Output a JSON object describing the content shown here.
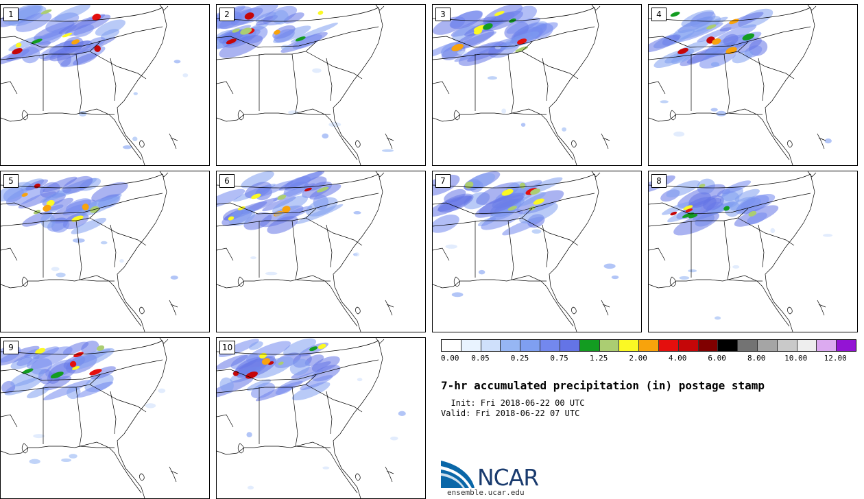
{
  "panels": [
    {
      "label": "1"
    },
    {
      "label": "2"
    },
    {
      "label": "3"
    },
    {
      "label": "4"
    },
    {
      "label": "5"
    },
    {
      "label": "6"
    },
    {
      "label": "7"
    },
    {
      "label": "8"
    },
    {
      "label": "9"
    },
    {
      "label": "10"
    }
  ],
  "colorbar": {
    "colors": [
      "#ffffff",
      "#e9f3ff",
      "#cfe0fb",
      "#96b6f4",
      "#7f9ff1",
      "#7388ee",
      "#6474e6",
      "#139c21",
      "#abcd72",
      "#fbf924",
      "#f8a30c",
      "#e40f0d",
      "#c50608",
      "#800000",
      "#000000",
      "#737373",
      "#a5a5a5",
      "#c9c9c9",
      "#eeeeee",
      "#dcaaf0",
      "#9314d4"
    ],
    "tick_labels": [
      "0.00",
      "0.05",
      "0.25",
      "0.75",
      "1.25",
      "2.00",
      "4.00",
      "6.00",
      "8.00",
      "10.00",
      "12.00"
    ]
  },
  "title": "7-hr accumulated precipitation (in) postage stamp",
  "init_line": "  Init: Fri 2018-06-22 00 UTC",
  "valid_line": "Valid: Fri 2018-06-22 07 UTC",
  "logo": {
    "text": "NCAR",
    "url": "ensemble.ucar.edu",
    "colors": [
      "#0a67a8",
      "#1a3b6e"
    ]
  }
}
